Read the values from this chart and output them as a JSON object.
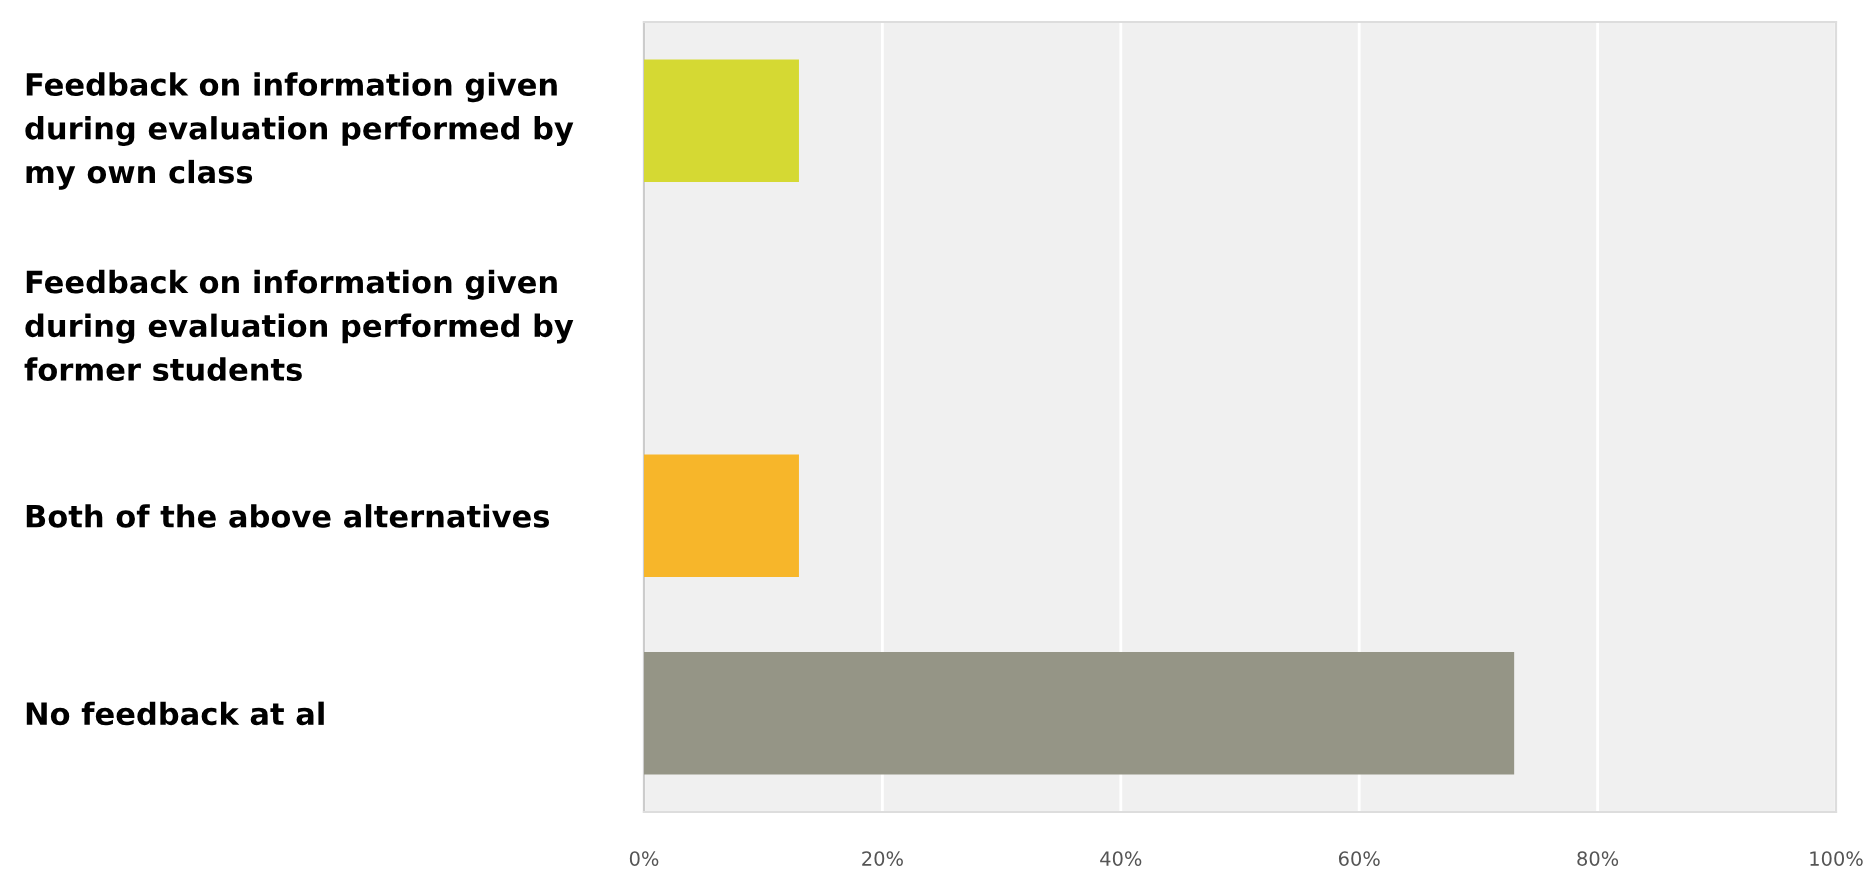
{
  "chart_data": {
    "type": "bar",
    "orientation": "horizontal",
    "categories": [
      "Feedback on information given\nduring evaluation performed by\nmy own class",
      "Feedback on information given\nduring evaluation performed by\nformer students",
      "Both of the above alternatives",
      "No feedback at al"
    ],
    "values": [
      13,
      0,
      13,
      73
    ],
    "colors": [
      "#d5d933",
      null,
      "#f7b62a",
      "#959586"
    ],
    "xlim": [
      0,
      100
    ],
    "xticks": [
      {
        "value": 0,
        "label": "0%"
      },
      {
        "value": 20,
        "label": "20%"
      },
      {
        "value": 40,
        "label": "40%"
      },
      {
        "value": 60,
        "label": "60%"
      },
      {
        "value": 80,
        "label": "80%"
      },
      {
        "value": 100,
        "label": "100%"
      }
    ],
    "grid": "x",
    "legend": false
  }
}
